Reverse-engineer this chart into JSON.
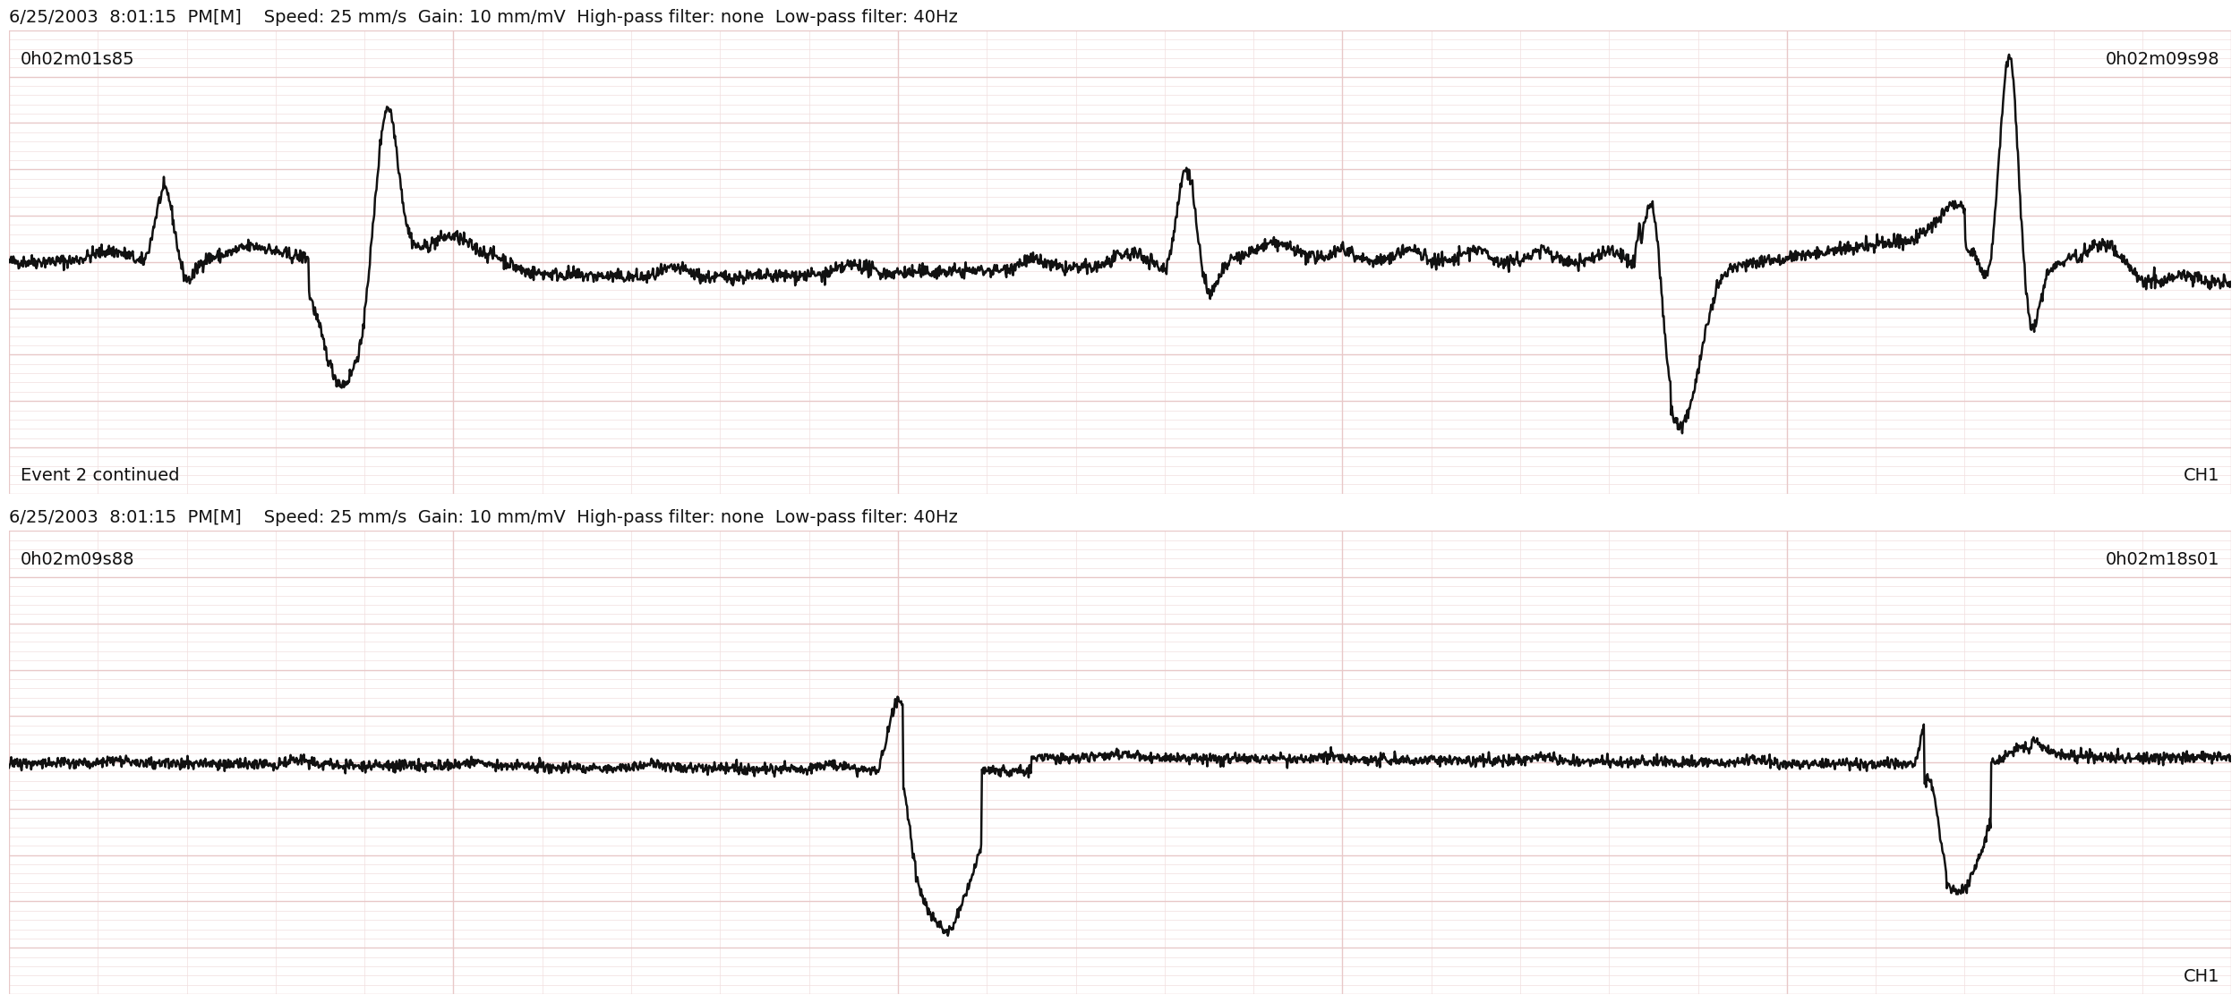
{
  "fig_width": 25.33,
  "fig_height": 11.22,
  "dpi": 100,
  "background_color": "#FAF0F0",
  "grid_major_color": "#E8C8C8",
  "grid_minor_color": "#F2DEDE",
  "ecg_color": "#111111",
  "ecg_linewidth": 1.8,
  "header_text_1": "6/25/2003  8:01:15  PM[M]    Speed: 25 mm/s  Gain: 10 mm/mV  High-pass filter: none  Low-pass filter: 40Hz",
  "strip1_label_left": "0h02m01s85",
  "strip1_label_right": "0h02m09s98",
  "strip1_label_bottom_left": "Event 2 continued",
  "strip1_label_bottom_right": "CH1",
  "strip2_label_left": "0h02m09s88",
  "strip2_label_right": "0h02m18s01",
  "strip2_label_bottom_right": "CH1",
  "header_fontsize": 14,
  "label_fontsize": 14,
  "text_color": "#111111"
}
